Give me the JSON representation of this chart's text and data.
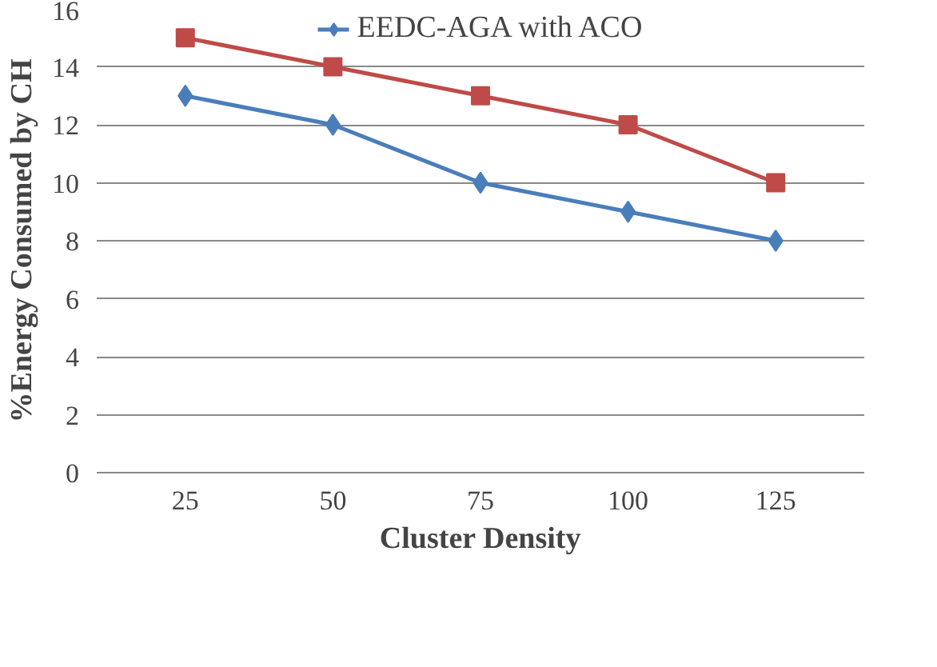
{
  "chart_data": {
    "type": "line",
    "xlabel": "Cluster Density",
    "ylabel": "%Energy Consumed by CH",
    "categories": [
      "25",
      "50",
      "75",
      "100",
      "125"
    ],
    "series": [
      {
        "name": "EEDC-AGA with ACO",
        "color": "#4a7ebb",
        "values": [
          13,
          12,
          10,
          9,
          8
        ],
        "marker": "diamond"
      },
      {
        "color": "#be4b48",
        "values": [
          15,
          14,
          13,
          12,
          10
        ],
        "marker": "square"
      }
    ],
    "ylim": [
      0,
      16
    ],
    "yticks": [
      0,
      2,
      4,
      6,
      8,
      10,
      12,
      14,
      16
    ],
    "grid": "y",
    "legend": "top",
    "line_style": "solid"
  }
}
